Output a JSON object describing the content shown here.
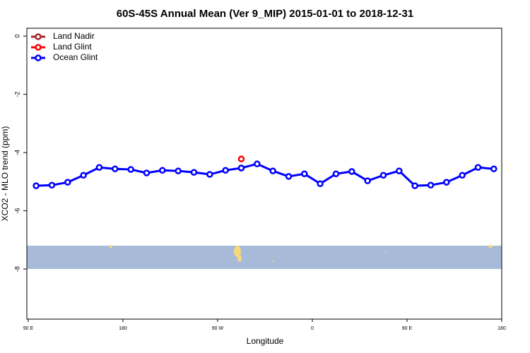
{
  "chart_data": {
    "type": "line",
    "title": "60S-45S Annual Mean (Ver 9_MIP)   2015-01-01 to 2018-12-31",
    "x_label": "Longitude",
    "y_label": "XCO2 - MLO trend (ppm)",
    "xlim": [
      88.7,
      540
    ],
    "xticks": [
      {
        "value": 90,
        "label": "90 E"
      },
      {
        "value": 180,
        "label": "180"
      },
      {
        "value": 270,
        "label": "90 W"
      },
      {
        "value": 360,
        "label": "0"
      },
      {
        "value": 450,
        "label": "90 E"
      },
      {
        "value": 540,
        "label": "180"
      }
    ],
    "ylim": [
      -9.72,
      0.27
    ],
    "yticks": [
      0,
      -2,
      -4,
      -6,
      -8
    ],
    "legend": "top-left",
    "series": [
      {
        "name": "Land Nadir",
        "color": "#a52a2a",
        "x": [
          292.5
        ],
        "values": [
          -4.53
        ]
      },
      {
        "name": "Land Glint",
        "color": "#ff0000",
        "x": [
          292.5
        ],
        "values": [
          -4.22
        ]
      },
      {
        "name": "Ocean Glint",
        "color": "#0000ff",
        "x": [
          97.5,
          112.5,
          127.5,
          142.5,
          157.5,
          172.5,
          187.5,
          202.5,
          217.5,
          232.5,
          247.5,
          262.5,
          277.5,
          292.5,
          307.5,
          322.5,
          337.5,
          352.5,
          367.5,
          382.5,
          397.5,
          412.5,
          427.5,
          442.5,
          457.5,
          472.5,
          487.5,
          502.5,
          517.5,
          532.5
        ],
        "values": [
          -5.14,
          -5.12,
          -5.02,
          -4.78,
          -4.51,
          -4.56,
          -4.58,
          -4.7,
          -4.61,
          -4.63,
          -4.68,
          -4.75,
          -4.61,
          -4.53,
          -4.39,
          -4.63,
          -4.82,
          -4.73,
          -5.07,
          -4.73,
          -4.65,
          -4.97,
          -4.78,
          -4.63,
          -5.14,
          -5.12,
          -5.02,
          -4.78,
          -4.51,
          -4.56
        ]
      }
    ]
  }
}
